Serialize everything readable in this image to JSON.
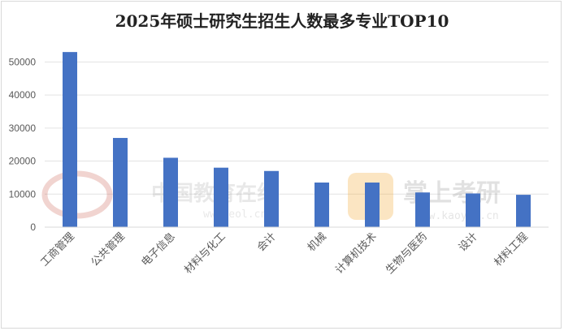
{
  "chart_data": {
    "type": "bar",
    "title": "2025年硕士研究生招生人数最多专业TOP10",
    "categories": [
      "工商管理",
      "公共管理",
      "电子信息",
      "材料与化工",
      "会计",
      "机械",
      "计算机技术",
      "生物与医药",
      "设计",
      "材料工程"
    ],
    "values": [
      53000,
      27000,
      21000,
      18000,
      17000,
      13500,
      13500,
      10500,
      10200,
      9800
    ],
    "ylim": [
      0,
      55000
    ],
    "yticks": [
      0,
      10000,
      20000,
      30000,
      40000,
      50000
    ],
    "grid": true,
    "legend": "none",
    "bar_color": "#4472C4"
  },
  "watermarks": {
    "left_cn": "中国教育在线",
    "left_url": "www.eol.cn",
    "right_cn": "掌上考研",
    "right_url": "www.kaoyan.cn"
  }
}
